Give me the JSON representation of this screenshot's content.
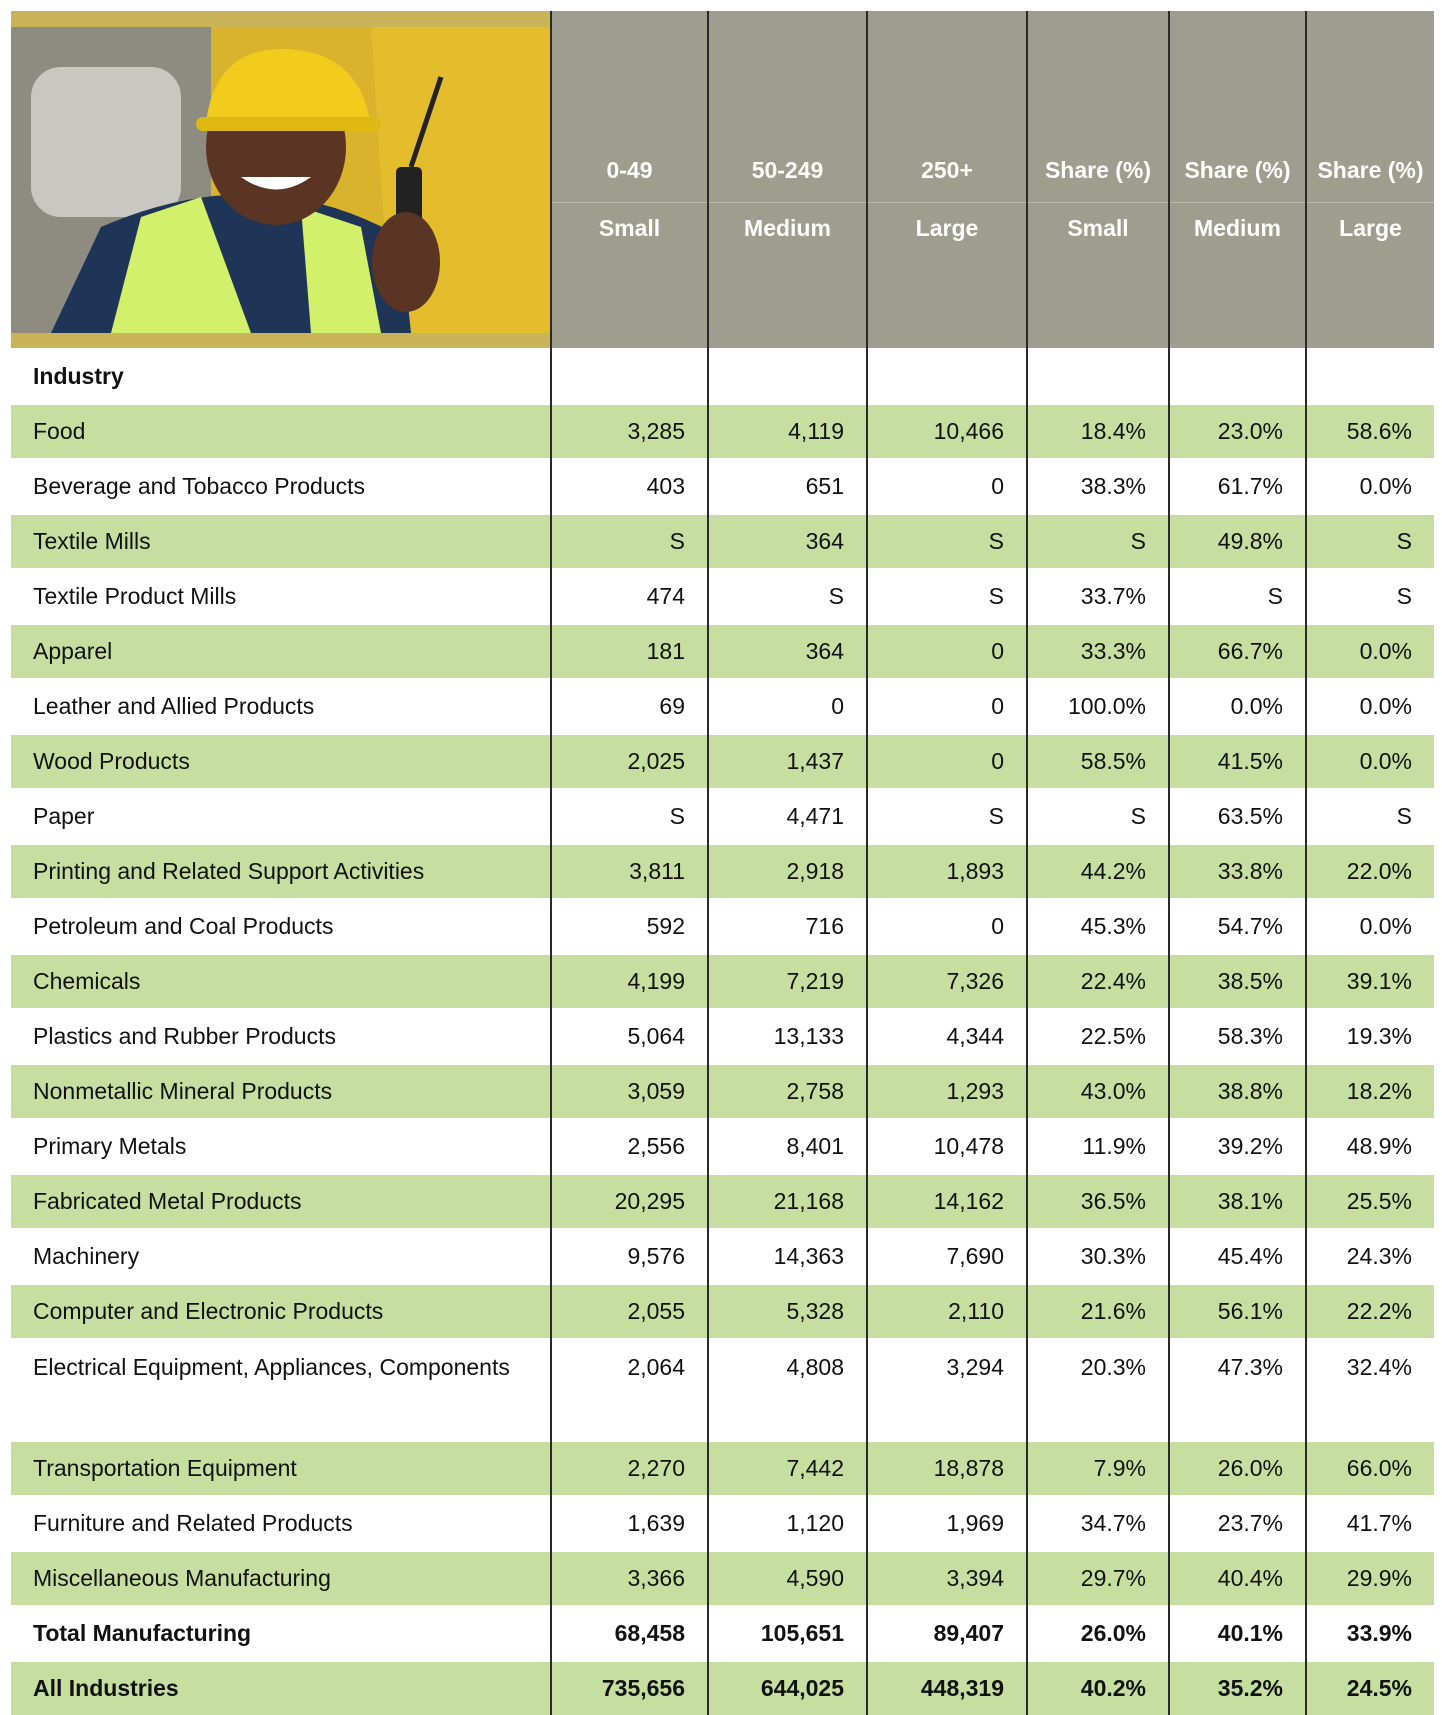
{
  "header": {
    "groups": [
      "0-49",
      "50-249",
      "250+",
      "Share (%)",
      "Share (%)",
      "Share (%)"
    ],
    "sizes": [
      "Small",
      "Medium",
      "Large",
      "Small",
      "Medium",
      "Large"
    ]
  },
  "table": {
    "label": "Industry",
    "rows": [
      [
        "Food",
        "3,285",
        "4,119",
        "10,466",
        "18.4%",
        "23.0%",
        "58.6%"
      ],
      [
        "Beverage and Tobacco Products",
        "403",
        "651",
        "0",
        "38.3%",
        "61.7%",
        "0.0%"
      ],
      [
        "Textile Mills",
        "S",
        "364",
        "S",
        "S",
        "49.8%",
        "S"
      ],
      [
        "Textile Product Mills",
        "474",
        "S",
        "S",
        "33.7%",
        "S",
        "S"
      ],
      [
        "Apparel",
        "181",
        "364",
        "0",
        "33.3%",
        "66.7%",
        "0.0%"
      ],
      [
        "Leather and Allied Products",
        "69",
        "0",
        "0",
        "100.0%",
        "0.0%",
        "0.0%"
      ],
      [
        "Wood Products",
        "2,025",
        "1,437",
        "0",
        "58.5%",
        "41.5%",
        "0.0%"
      ],
      [
        "Paper",
        "S",
        "4,471",
        "S",
        "S",
        "63.5%",
        "S"
      ],
      [
        "Printing and Related Support Activities",
        "3,811",
        "2,918",
        "1,893",
        "44.2%",
        "33.8%",
        "22.0%"
      ],
      [
        "Petroleum and Coal Products",
        "592",
        "716",
        "0",
        "45.3%",
        "54.7%",
        "0.0%"
      ],
      [
        "Chemicals",
        "4,199",
        "7,219",
        "7,326",
        "22.4%",
        "38.5%",
        "39.1%"
      ],
      [
        "Plastics and Rubber Products",
        "5,064",
        "13,133",
        "4,344",
        "22.5%",
        "58.3%",
        "19.3%"
      ],
      [
        "Nonmetallic Mineral Products",
        "3,059",
        "2,758",
        "1,293",
        "43.0%",
        "38.8%",
        "18.2%"
      ],
      [
        "Primary Metals",
        "2,556",
        "8,401",
        "10,478",
        "11.9%",
        "39.2%",
        "48.9%"
      ],
      [
        "Fabricated Metal Products",
        "20,295",
        "21,168",
        "14,162",
        "36.5%",
        "38.1%",
        "25.5%"
      ],
      [
        "Machinery",
        "9,576",
        "14,363",
        "7,690",
        "30.3%",
        "45.4%",
        "24.3%"
      ],
      [
        "Computer and Electronic Products",
        "2,055",
        "5,328",
        "2,110",
        "21.6%",
        "56.1%",
        "22.2%"
      ],
      [
        "Electrical Equipment, Appliances, Components",
        "2,064",
        "4,808",
        "3,294",
        "20.3%",
        "47.3%",
        "32.4%"
      ],
      [
        "Transportation Equipment",
        "2,270",
        "7,442",
        "18,878",
        "7.9%",
        "26.0%",
        "66.0%"
      ],
      [
        "Furniture and Related Products",
        "1,639",
        "1,120",
        "1,969",
        "34.7%",
        "23.7%",
        "41.7%"
      ],
      [
        "Miscellaneous Manufacturing",
        "3,366",
        "4,590",
        "3,394",
        "29.7%",
        "40.4%",
        "29.9%"
      ],
      [
        "Total Manufacturing",
        "68,458",
        "105,651",
        "89,407",
        "26.0%",
        "40.1%",
        "33.9%"
      ],
      [
        "All Industries",
        "735,656",
        "644,025",
        "448,319",
        "40.2%",
        "35.2%",
        "24.5%"
      ]
    ]
  }
}
